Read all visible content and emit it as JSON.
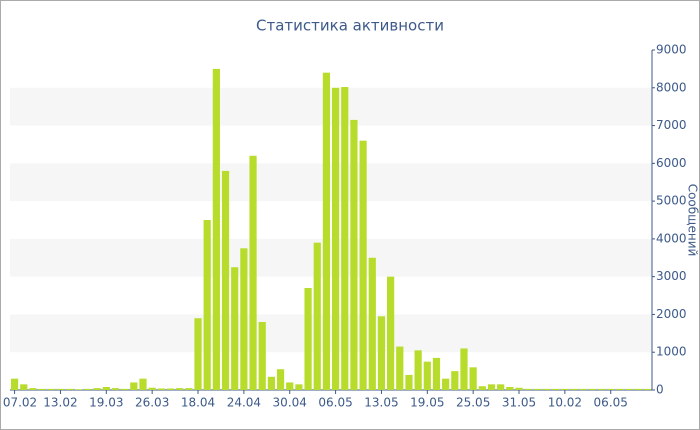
{
  "chart_data": {
    "type": "bar",
    "title": "Статистика активности",
    "y_label": "Сообщений",
    "categories": [
      "07.02",
      null,
      null,
      null,
      null,
      "13.02",
      null,
      null,
      null,
      null,
      "19.03",
      null,
      null,
      null,
      null,
      "26.03",
      null,
      null,
      null,
      null,
      "18.04",
      null,
      null,
      null,
      null,
      "24.04",
      null,
      null,
      null,
      null,
      "30.04",
      null,
      null,
      null,
      null,
      "06.05",
      null,
      null,
      null,
      null,
      "13.05",
      null,
      null,
      null,
      null,
      "19.05",
      null,
      null,
      null,
      null,
      "25.05",
      null,
      null,
      null,
      null,
      "31.05",
      null,
      null,
      null,
      null,
      "10.02",
      null,
      null,
      null,
      null,
      "06.05",
      null,
      null,
      null,
      null
    ],
    "values": [
      300,
      150,
      50,
      30,
      30,
      30,
      30,
      20,
      30,
      50,
      80,
      50,
      30,
      200,
      300,
      60,
      40,
      40,
      50,
      50,
      1900,
      4500,
      8500,
      5800,
      3250,
      3750,
      6200,
      1800,
      350,
      550,
      200,
      150,
      2700,
      3900,
      8400,
      8000,
      8020,
      7150,
      6600,
      3500,
      1950,
      3000,
      1150,
      400,
      1050,
      750,
      850,
      300,
      500,
      1100,
      600,
      100,
      150,
      150,
      80,
      60,
      30,
      30,
      30,
      30,
      30,
      30,
      30,
      30,
      30,
      30,
      30,
      30,
      30,
      30
    ],
    "color": "#b8dc2c",
    "ylim": [
      0,
      9000
    ],
    "yticks": [
      0,
      1000,
      2000,
      3000,
      4000,
      5000,
      6000,
      7000,
      8000,
      9000
    ],
    "grid": true
  }
}
